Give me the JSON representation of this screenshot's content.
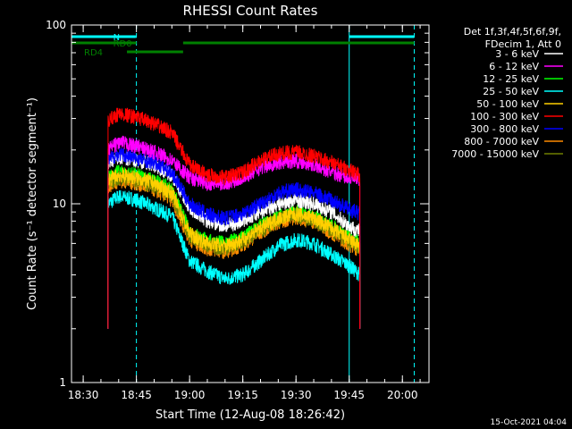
{
  "chart_data": {
    "type": "line",
    "title": "RHESSI Count Rates",
    "xlabel": "Start Time (12-Aug-08 18:26:42)",
    "ylabel": "Count Rate (s⁻¹ detector segment⁻¹)",
    "y_scale": "log",
    "ylim": [
      1,
      100
    ],
    "xlim": [
      "18:26:42",
      "20:07:30"
    ],
    "x_ticks": [
      "18:30",
      "18:45",
      "19:00",
      "19:15",
      "19:30",
      "19:45",
      "20:00"
    ],
    "y_ticks": [
      "1",
      "10",
      "100"
    ],
    "grid": false,
    "legend_position": "right",
    "legend_header": [
      "Det 1f,3f,4f,5f,6f,9f,",
      "FDecim 1, Att 0"
    ],
    "timestamp": "15-Oct-2021 04:04",
    "time_points": [
      "18:37:00",
      "18:40:00",
      "18:45:00",
      "18:50:00",
      "18:55:00",
      "19:00:00",
      "19:05:00",
      "19:10:00",
      "19:15:00",
      "19:20:00",
      "19:25:00",
      "19:30:00",
      "19:35:00",
      "19:40:00",
      "19:45:00",
      "19:48:00"
    ],
    "series": [
      {
        "name": "3 - 6 keV",
        "color": "#ffffff",
        "values": [
          17.0,
          18.0,
          17.5,
          16.5,
          14.5,
          9.5,
          8.0,
          7.5,
          8.0,
          9.0,
          10.0,
          10.5,
          10.0,
          9.0,
          7.5,
          7.0
        ]
      },
      {
        "name": "6 - 12 keV",
        "color": "#ff00ff",
        "values": [
          20.0,
          22.0,
          21.0,
          19.5,
          17.5,
          14.0,
          13.0,
          13.0,
          14.0,
          16.0,
          17.0,
          17.5,
          16.5,
          15.0,
          14.0,
          13.5
        ]
      },
      {
        "name": "12 - 25 keV",
        "color": "#00ff00",
        "values": [
          14.0,
          15.0,
          14.5,
          13.5,
          12.0,
          7.0,
          6.2,
          6.0,
          6.5,
          7.5,
          8.5,
          9.0,
          8.5,
          7.5,
          6.5,
          6.0
        ]
      },
      {
        "name": "25 - 50 keV",
        "color": "#00ffff",
        "values": [
          10.0,
          11.0,
          10.5,
          9.5,
          8.5,
          4.8,
          4.2,
          3.8,
          4.0,
          4.8,
          5.8,
          6.3,
          6.0,
          5.2,
          4.5,
          4.0
        ]
      },
      {
        "name": "50 - 100 keV",
        "color": "#ffd000",
        "values": [
          13.5,
          14.5,
          14.0,
          13.0,
          11.5,
          6.8,
          6.0,
          5.8,
          6.3,
          7.3,
          8.3,
          8.8,
          8.3,
          7.3,
          6.3,
          5.8
        ]
      },
      {
        "name": "100 - 300 keV",
        "color": "#ff0000",
        "values": [
          29.0,
          32.0,
          30.5,
          28.0,
          25.0,
          16.5,
          14.5,
          14.0,
          15.0,
          17.5,
          19.0,
          19.5,
          18.5,
          17.0,
          15.5,
          14.5
        ]
      },
      {
        "name": "300 - 800 keV",
        "color": "#0000ff",
        "values": [
          17.5,
          19.0,
          18.0,
          17.0,
          15.0,
          10.0,
          8.7,
          8.3,
          8.8,
          10.0,
          11.5,
          12.0,
          11.5,
          10.5,
          9.3,
          8.8
        ]
      },
      {
        "name": "800 - 7000 keV",
        "color": "#ff8c00",
        "values": [
          12.5,
          13.5,
          13.0,
          12.0,
          10.5,
          6.3,
          5.6,
          5.4,
          5.9,
          6.9,
          7.9,
          8.4,
          7.9,
          6.9,
          5.9,
          5.5
        ]
      },
      {
        "name": "7000 - 15000 keV",
        "color": "#708000",
        "values": [
          13.0,
          14.0,
          13.5,
          12.5,
          11.0,
          6.6,
          5.8,
          5.6,
          6.1,
          7.1,
          8.1,
          8.6,
          8.1,
          7.1,
          6.1,
          5.7
        ]
      }
    ],
    "attenuator_bars": [
      {
        "label": "",
        "color": "#00ffff",
        "start": "18:26:42",
        "end": "18:44:40"
      },
      {
        "label": "N",
        "color": "#00ffff",
        "start": "18:44:40",
        "end": "18:45:00"
      },
      {
        "label": "",
        "color": "#00ffff",
        "start": "19:45:00",
        "end": "20:03:20"
      },
      {
        "label": "RD0",
        "color": "#008000",
        "start": "18:26:42",
        "end": "18:45:00"
      },
      {
        "label": "",
        "color": "#008000",
        "start": "18:58:10",
        "end": "20:03:20"
      },
      {
        "label": "RD4",
        "color": "#008000",
        "start": "18:42:20",
        "end": "18:58:10"
      }
    ],
    "vertical_lines": [
      {
        "time": "18:45:00",
        "color": "#00ffff",
        "style": "dashed"
      },
      {
        "time": "19:45:00",
        "color": "#00ffff",
        "style": "solid"
      },
      {
        "time": "20:03:20",
        "color": "#00ffff",
        "style": "dashed"
      }
    ]
  }
}
